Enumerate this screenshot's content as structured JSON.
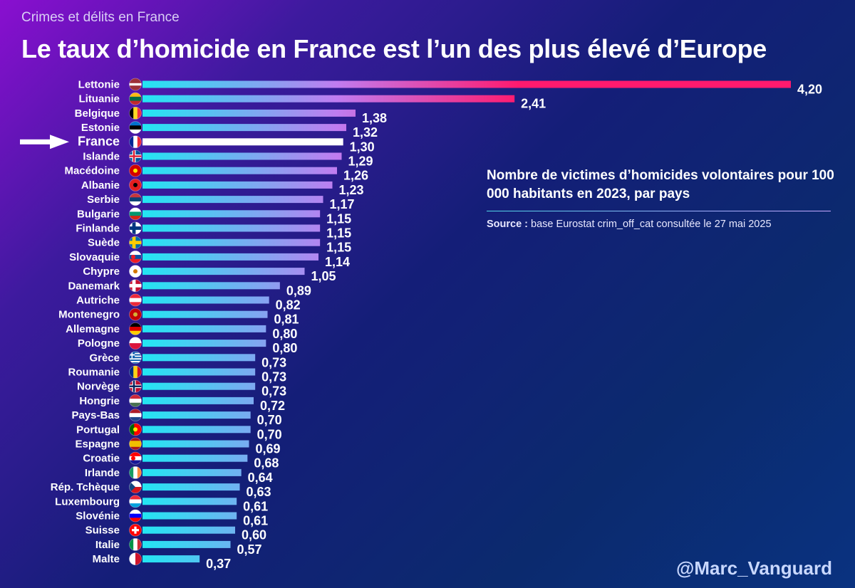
{
  "header": {
    "kicker": "Crimes et délits en France",
    "title": "Le taux d’homicide en France est l’un des plus élevé d’Europe"
  },
  "note": {
    "title": "Nombre de victimes d’homicides volontaires pour 100 000 habitants en 2023, par pays",
    "source_label": "Source :",
    "source_text": "base Eurostat crim_off_cat consultée le 27 mai 2025"
  },
  "footer": {
    "handle": "@Marc_Vanguard"
  },
  "colors": {
    "bar_start": "#22e6f2",
    "bar_mid": "#c07cf0",
    "bar_end": "#ff1a6e",
    "highlight_bar": "#ffffff",
    "arrow": "#ffffff"
  },
  "chart_data": {
    "type": "bar",
    "orientation": "horizontal",
    "highlight": "France",
    "xlim": [
      0,
      4.2
    ],
    "grid": false,
    "legend": "none",
    "decimal_separator": ",",
    "categories": [
      "Lettonie",
      "Lituanie",
      "Belgique",
      "Estonie",
      "France",
      "Islande",
      "Macédoine",
      "Albanie",
      "Serbie",
      "Bulgarie",
      "Finlande",
      "Suède",
      "Slovaquie",
      "Chypre",
      "Danemark",
      "Autriche",
      "Montenegro",
      "Allemagne",
      "Pologne",
      "Grèce",
      "Roumanie",
      "Norvège",
      "Hongrie",
      "Pays-Bas",
      "Portugal",
      "Espagne",
      "Croatie",
      "Irlande",
      "Rép. Tchèque",
      "Luxembourg",
      "Slovénie",
      "Suisse",
      "Italie",
      "Malte"
    ],
    "values": [
      4.2,
      2.41,
      1.38,
      1.32,
      1.3,
      1.29,
      1.26,
      1.23,
      1.17,
      1.15,
      1.15,
      1.15,
      1.14,
      1.05,
      0.89,
      0.82,
      0.81,
      0.8,
      0.8,
      0.73,
      0.73,
      0.73,
      0.72,
      0.7,
      0.7,
      0.69,
      0.68,
      0.64,
      0.63,
      0.61,
      0.61,
      0.6,
      0.57,
      0.37
    ],
    "value_labels": [
      "4,20",
      "2,41",
      "1,38",
      "1,32",
      "1,30",
      "1,29",
      "1,26",
      "1,23",
      "1,17",
      "1,15",
      "1,15",
      "1,15",
      "1,14",
      "1,05",
      "0,89",
      "0,82",
      "0,81",
      "0,80",
      "0,80",
      "0,73",
      "0,73",
      "0,73",
      "0,72",
      "0,70",
      "0,70",
      "0,69",
      "0,68",
      "0,64",
      "0,63",
      "0,61",
      "0,61",
      "0,60",
      "0,57",
      "0,37"
    ],
    "flags": [
      {
        "type": "h",
        "colors": [
          "#9e3039",
          "#ffffff",
          "#9e3039"
        ],
        "weights": [
          2,
          1,
          2
        ]
      },
      {
        "type": "h",
        "colors": [
          "#fdb913",
          "#006a44",
          "#c1272d"
        ]
      },
      {
        "type": "v",
        "colors": [
          "#000000",
          "#fdda24",
          "#ef3340"
        ]
      },
      {
        "type": "h",
        "colors": [
          "#0072ce",
          "#000000",
          "#ffffff"
        ]
      },
      {
        "type": "v",
        "colors": [
          "#002395",
          "#ffffff",
          "#ed2939"
        ]
      },
      {
        "type": "nordic",
        "colors": [
          "#02529c",
          "#ffffff",
          "#dc1e35"
        ]
      },
      {
        "type": "solid",
        "colors": [
          "#d20000"
        ],
        "emblem": "#ffe600"
      },
      {
        "type": "solid",
        "colors": [
          "#e41e20"
        ],
        "emblem": "#000000"
      },
      {
        "type": "h",
        "colors": [
          "#c6363c",
          "#0c4076",
          "#ffffff"
        ]
      },
      {
        "type": "h",
        "colors": [
          "#ffffff",
          "#00966e",
          "#d62612"
        ]
      },
      {
        "type": "nordic",
        "colors": [
          "#ffffff",
          "#003580"
        ]
      },
      {
        "type": "nordic",
        "colors": [
          "#006aa7",
          "#fecc00"
        ]
      },
      {
        "type": "h",
        "colors": [
          "#ffffff",
          "#0b4ea2",
          "#ee1c25"
        ],
        "emblem": "#ee1c25"
      },
      {
        "type": "solid",
        "colors": [
          "#ffffff"
        ],
        "emblem": "#d57800"
      },
      {
        "type": "nordic",
        "colors": [
          "#c8102e",
          "#ffffff"
        ]
      },
      {
        "type": "h",
        "colors": [
          "#ed2939",
          "#ffffff",
          "#ed2939"
        ]
      },
      {
        "type": "solid",
        "colors": [
          "#c40308"
        ],
        "emblem": "#d4af37"
      },
      {
        "type": "h",
        "colors": [
          "#000000",
          "#dd0000",
          "#ffce00"
        ]
      },
      {
        "type": "h",
        "colors": [
          "#ffffff",
          "#dc143c"
        ],
        "weights": [
          1,
          1
        ]
      },
      {
        "type": "stripes",
        "colors": [
          "#0d5eaf",
          "#ffffff"
        ]
      },
      {
        "type": "v",
        "colors": [
          "#002b7f",
          "#fcd116",
          "#ce1126"
        ]
      },
      {
        "type": "nordic",
        "colors": [
          "#ba0c2f",
          "#ffffff",
          "#00205b"
        ]
      },
      {
        "type": "h",
        "colors": [
          "#ce2939",
          "#ffffff",
          "#477050"
        ]
      },
      {
        "type": "h",
        "colors": [
          "#ae1c28",
          "#ffffff",
          "#21468b"
        ]
      },
      {
        "type": "v",
        "colors": [
          "#006600",
          "#ff0000"
        ],
        "weights": [
          2,
          3
        ],
        "emblem": "#ffe600"
      },
      {
        "type": "h",
        "colors": [
          "#aa151b",
          "#f1bf00",
          "#aa151b"
        ],
        "weights": [
          1,
          2,
          1
        ]
      },
      {
        "type": "h",
        "colors": [
          "#ff0000",
          "#ffffff",
          "#171796"
        ],
        "emblem": "#ff0000"
      },
      {
        "type": "v",
        "colors": [
          "#169b62",
          "#ffffff",
          "#ff883e"
        ]
      },
      {
        "type": "czech",
        "colors": [
          "#ffffff",
          "#d7141a",
          "#11457e"
        ]
      },
      {
        "type": "h",
        "colors": [
          "#ed2939",
          "#ffffff",
          "#00a1de"
        ]
      },
      {
        "type": "h",
        "colors": [
          "#ffffff",
          "#0000ff",
          "#ff0000"
        ],
        "emblem": "#0000ff"
      },
      {
        "type": "swiss",
        "colors": [
          "#ff0000",
          "#ffffff"
        ]
      },
      {
        "type": "v",
        "colors": [
          "#009246",
          "#ffffff",
          "#ce2b37"
        ]
      },
      {
        "type": "v",
        "colors": [
          "#ffffff",
          "#cf142b"
        ],
        "weights": [
          1,
          1
        ]
      }
    ]
  }
}
